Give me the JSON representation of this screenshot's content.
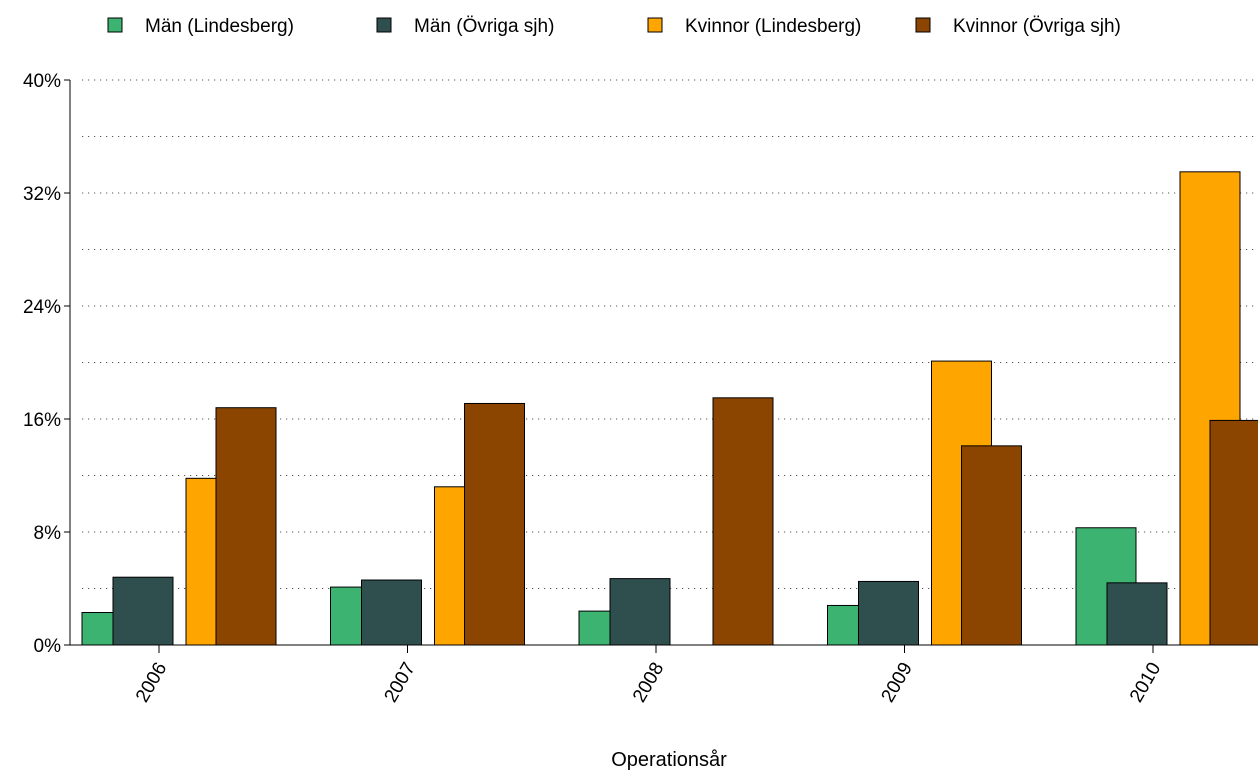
{
  "chart_data": {
    "type": "bar",
    "xlabel": "Operationsår",
    "ylabel": "",
    "categories": [
      "2006",
      "2007",
      "2008",
      "2009",
      "2010"
    ],
    "ylim": [
      0,
      40
    ],
    "yticks": [
      "0%",
      "8%",
      "16%",
      "24%",
      "32%",
      "40%"
    ],
    "grid": "horizontal-dotted",
    "legend_position": "top",
    "series": [
      {
        "name": "Män (Lindesberg)",
        "color": "#3cb371",
        "values": [
          2.3,
          4.1,
          2.4,
          2.8,
          8.3
        ]
      },
      {
        "name": "Män (Övriga sjh)",
        "color": "#2f4f4f",
        "values": [
          4.8,
          4.6,
          4.7,
          4.5,
          4.4
        ]
      },
      {
        "name": "Kvinnor (Lindesberg)",
        "color": "#ffa500",
        "values": [
          11.8,
          11.2,
          0.0,
          20.1,
          33.5
        ]
      },
      {
        "name": "Kvinnor (Övriga sjh)",
        "color": "#8b4500",
        "values": [
          16.8,
          17.1,
          17.5,
          14.1,
          15.9
        ]
      }
    ]
  }
}
